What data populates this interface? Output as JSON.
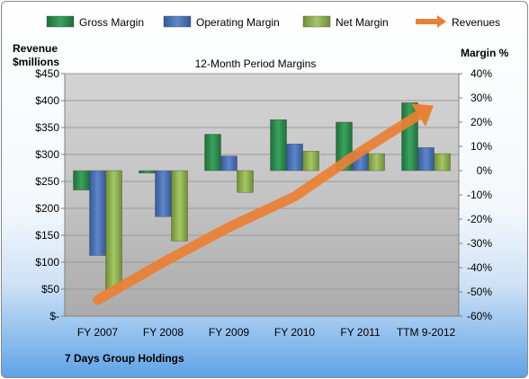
{
  "chart_data": {
    "type": "bar",
    "title": "12-Month Period Margins",
    "company": "7 Days Group Holdings",
    "left_axis_label": [
      "Revenue",
      "$millions"
    ],
    "right_axis_label": "Margin %",
    "categories": [
      "FY 2007",
      "FY 2008",
      "FY 2009",
      "FY 2010",
      "FY 2011",
      "TTM 9-2012"
    ],
    "left_ticks": [
      "$-",
      "$50",
      "$100",
      "$150",
      "$200",
      "$250",
      "$300",
      "$350",
      "$400",
      "$450"
    ],
    "right_ticks": [
      "-60%",
      "-50%",
      "-40%",
      "-30%",
      "-20%",
      "-10%",
      "0%",
      "10%",
      "20%",
      "30%",
      "40%"
    ],
    "left_ylim": [
      0,
      450
    ],
    "right_ylim": [
      -60,
      40
    ],
    "series": [
      {
        "name": "Gross Margin",
        "axis": "right",
        "color": "#2e8b4e",
        "values": [
          -8,
          -1,
          15,
          21,
          20,
          28
        ]
      },
      {
        "name": "Operating Margin",
        "axis": "right",
        "color": "#4a72b6",
        "values": [
          -35,
          -19,
          6,
          11,
          8,
          9.5
        ]
      },
      {
        "name": "Net Margin",
        "axis": "right",
        "color": "#93b652",
        "values": [
          -49,
          -29,
          -9,
          8,
          7,
          7
        ]
      },
      {
        "name": "Revenues",
        "axis": "left",
        "type": "line",
        "color": "#ea8034",
        "values": [
          30,
          100,
          165,
          222,
          305,
          382
        ]
      }
    ],
    "legend_position": "top",
    "grid": true
  }
}
